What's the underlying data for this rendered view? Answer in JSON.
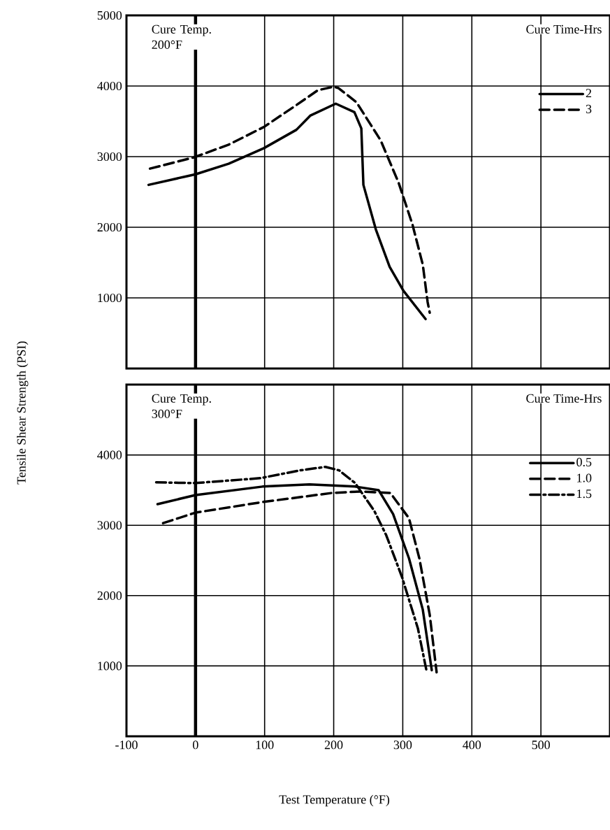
{
  "chart_data": [
    {
      "type": "line",
      "title": "Cure Temp. 200°F",
      "legend_title": "Cure Time-Hrs",
      "xlim": [
        -100,
        600
      ],
      "ylim": [
        0,
        5000
      ],
      "xticks": [
        -100,
        0,
        100,
        200,
        300,
        400,
        500
      ],
      "yticks": [
        1000,
        2000,
        3000,
        4000,
        5000
      ],
      "tick_labels": "y",
      "grid": true,
      "legend": "top right",
      "ref_lines": [
        {
          "axis": "x",
          "value": 0
        }
      ],
      "series": [
        {
          "name": "2",
          "color": "#000000",
          "line_style": "solid",
          "x": [
            -68,
            0,
            48,
            99,
            146,
            166,
            203,
            230,
            240,
            243,
            261,
            281,
            301,
            333
          ],
          "values": [
            2600,
            2750,
            2900,
            3120,
            3380,
            3580,
            3750,
            3630,
            3400,
            2600,
            1970,
            1440,
            1100,
            700
          ]
        },
        {
          "name": "3",
          "color": "#000000",
          "line_style": "dashed",
          "x": [
            -66,
            -2,
            48,
            99,
            146,
            177,
            200,
            207,
            233,
            268,
            294,
            314,
            329,
            336,
            339
          ],
          "values": [
            2830,
            2990,
            3170,
            3420,
            3730,
            3940,
            3990,
            3970,
            3770,
            3230,
            2630,
            2040,
            1470,
            940,
            790
          ]
        }
      ]
    },
    {
      "type": "line",
      "title": "Cure Temp. 300°F",
      "legend_title": "Cure Time-Hrs",
      "xlabel": "Test Temperature (°F)",
      "ylabel": "Tensile Shear Strength (PSI)",
      "xlim": [
        -100,
        600
      ],
      "ylim": [
        0,
        5000
      ],
      "xticks": [
        -100,
        0,
        100,
        200,
        300,
        400,
        500
      ],
      "yticks": [
        1000,
        2000,
        3000,
        4000
      ],
      "grid": true,
      "legend": "top right",
      "ref_lines": [
        {
          "axis": "x",
          "value": 0
        }
      ],
      "series": [
        {
          "name": "0.5",
          "color": "#000000",
          "line_style": "solid",
          "x": [
            -55,
            0,
            97,
            165,
            231,
            265,
            286,
            309,
            329,
            342
          ],
          "values": [
            3300,
            3430,
            3550,
            3580,
            3550,
            3500,
            3160,
            2530,
            1800,
            940
          ]
        },
        {
          "name": "1.0",
          "color": "#000000",
          "line_style": "dashed",
          "x": [
            -47,
            0,
            97,
            198,
            238,
            282,
            309,
            324,
            339,
            349
          ],
          "values": [
            3030,
            3180,
            3330,
            3460,
            3480,
            3460,
            3100,
            2530,
            1730,
            910
          ]
        },
        {
          "name": "1.5",
          "color": "#000000",
          "line_style": "dashdot",
          "x": [
            -57,
            0,
            94,
            151,
            188,
            208,
            231,
            259,
            276,
            299,
            322,
            334
          ],
          "values": [
            3610,
            3600,
            3670,
            3780,
            3830,
            3780,
            3600,
            3200,
            2860,
            2260,
            1530,
            950
          ]
        }
      ]
    }
  ]
}
